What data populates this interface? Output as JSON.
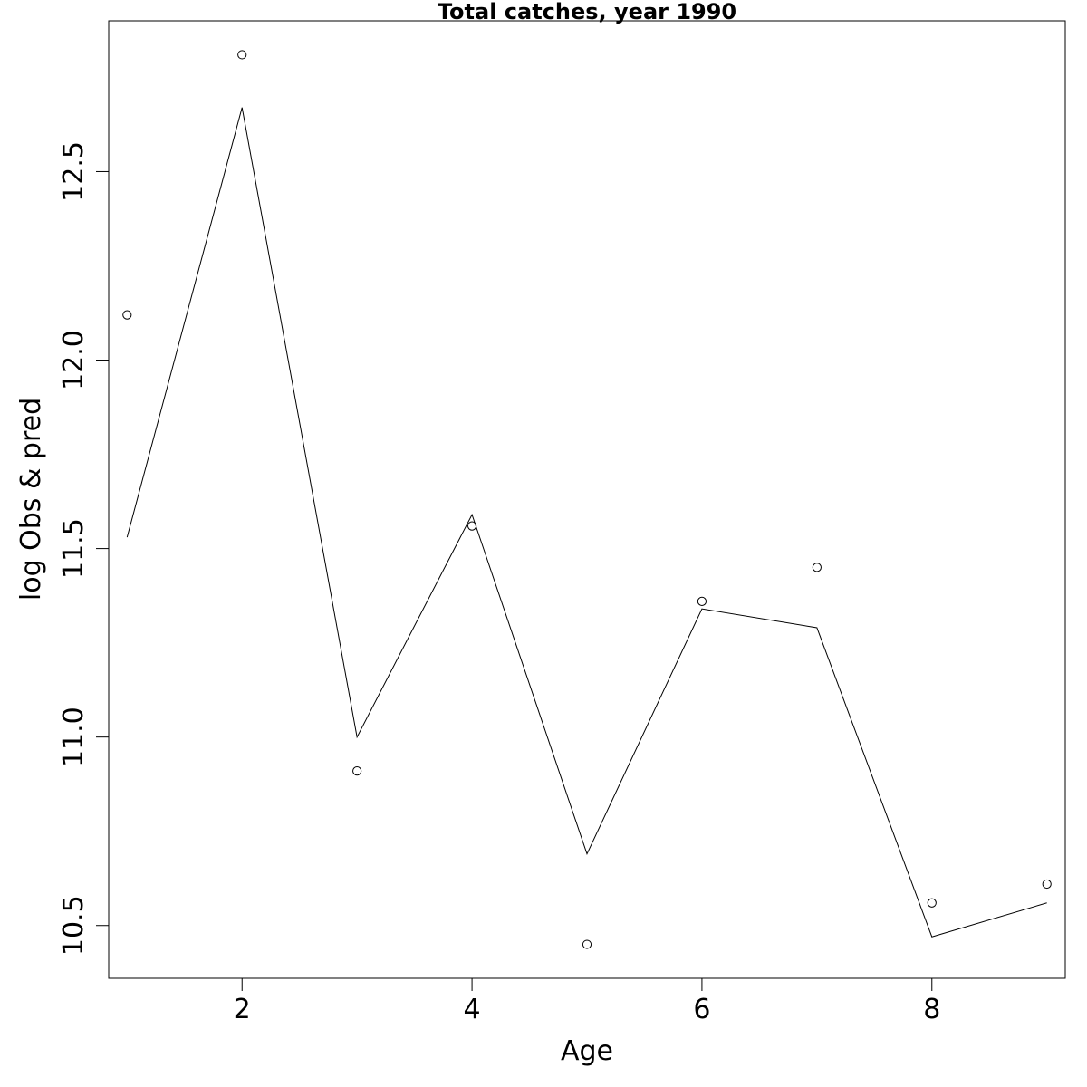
{
  "chart_data": {
    "type": "line",
    "title": "Total catches, year 1990",
    "xlabel": "Age",
    "ylabel": "log Obs & pred",
    "xlim": [
      0.84,
      9.16
    ],
    "ylim": [
      10.36,
      12.9
    ],
    "x_ticks": [
      2,
      4,
      6,
      8
    ],
    "y_ticks": [
      10.5,
      11.0,
      11.5,
      12.0,
      12.5
    ],
    "x_tick_labels": [
      "2",
      "4",
      "6",
      "8"
    ],
    "y_tick_labels": [
      "10.5",
      "11.0",
      "11.5",
      "12.0",
      "12.5"
    ],
    "grid": false,
    "legend": "none",
    "series": [
      {
        "style": "points",
        "marker": "open-circle",
        "x": [
          1,
          2,
          3,
          4,
          5,
          6,
          7,
          8,
          9
        ],
        "y": [
          12.12,
          12.81,
          10.91,
          11.56,
          10.45,
          11.36,
          11.45,
          10.56,
          10.61
        ]
      },
      {
        "style": "line",
        "x": [
          1,
          2,
          3,
          4,
          5,
          6,
          7,
          8,
          9
        ],
        "y": [
          11.53,
          12.67,
          11.0,
          11.59,
          10.69,
          11.34,
          11.29,
          10.47,
          10.56
        ]
      }
    ]
  }
}
